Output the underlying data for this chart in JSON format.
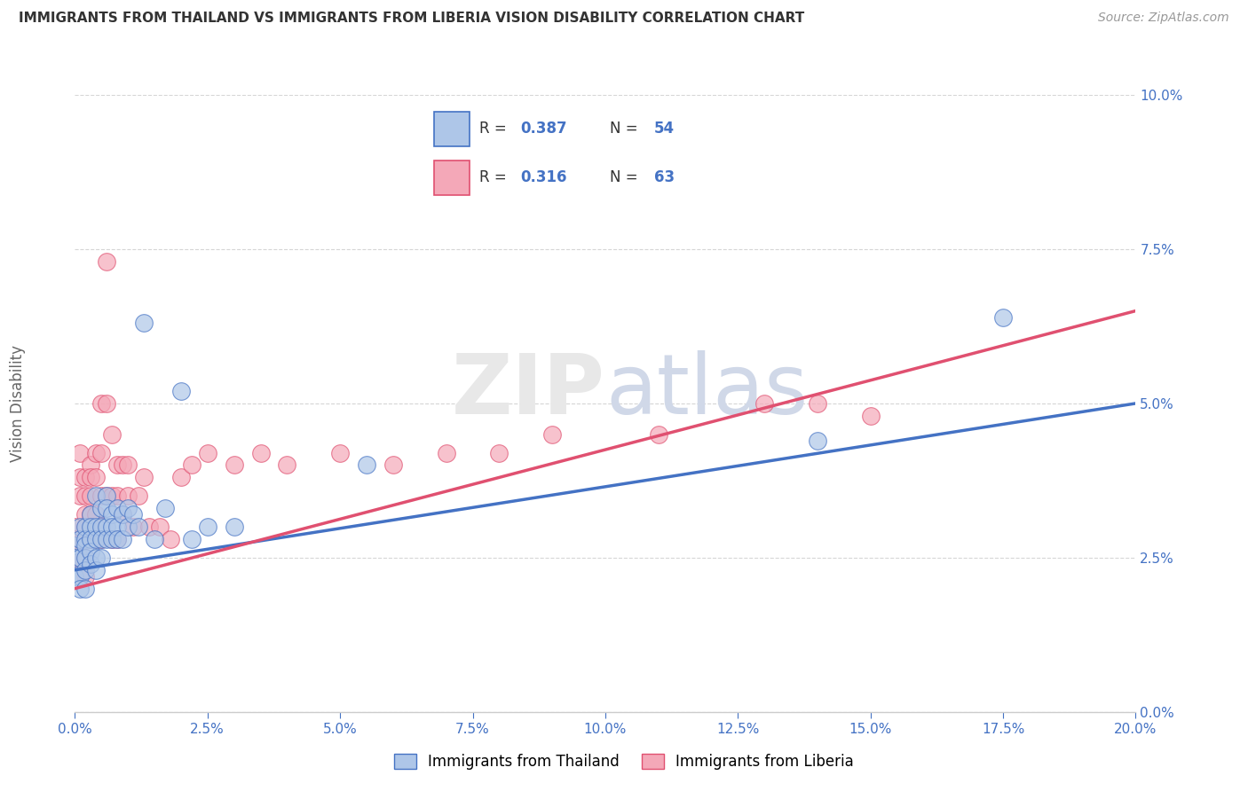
{
  "title": "IMMIGRANTS FROM THAILAND VS IMMIGRANTS FROM LIBERIA VISION DISABILITY CORRELATION CHART",
  "source": "Source: ZipAtlas.com",
  "ylabel": "Vision Disability",
  "legend_label1": "Immigrants from Thailand",
  "legend_label2": "Immigrants from Liberia",
  "legend_R1": "0.387",
  "legend_N1": "54",
  "legend_R2": "0.316",
  "legend_N2": "63",
  "color_thailand": "#AEC6E8",
  "color_liberia": "#F4A8B8",
  "trend_color_thailand": "#4472C4",
  "trend_color_liberia": "#E05070",
  "background_color": "#FFFFFF",
  "watermark": "ZIPatlas",
  "xlim": [
    0.0,
    0.2
  ],
  "ylim": [
    0.0,
    0.1
  ],
  "yticks": [
    0.0,
    0.025,
    0.05,
    0.075,
    0.1
  ],
  "xticks": [
    0.0,
    0.025,
    0.05,
    0.075,
    0.1,
    0.125,
    0.15,
    0.175,
    0.2
  ],
  "thailand_x": [
    0.0,
    0.0,
    0.0,
    0.001,
    0.001,
    0.001,
    0.001,
    0.001,
    0.002,
    0.002,
    0.002,
    0.002,
    0.002,
    0.002,
    0.003,
    0.003,
    0.003,
    0.003,
    0.003,
    0.004,
    0.004,
    0.004,
    0.004,
    0.004,
    0.005,
    0.005,
    0.005,
    0.005,
    0.006,
    0.006,
    0.006,
    0.006,
    0.007,
    0.007,
    0.007,
    0.008,
    0.008,
    0.008,
    0.009,
    0.009,
    0.01,
    0.01,
    0.011,
    0.012,
    0.013,
    0.015,
    0.017,
    0.02,
    0.022,
    0.025,
    0.03,
    0.055,
    0.14,
    0.175
  ],
  "thailand_y": [
    0.027,
    0.025,
    0.022,
    0.03,
    0.028,
    0.025,
    0.022,
    0.02,
    0.03,
    0.028,
    0.027,
    0.025,
    0.023,
    0.02,
    0.032,
    0.03,
    0.028,
    0.026,
    0.024,
    0.035,
    0.03,
    0.028,
    0.025,
    0.023,
    0.033,
    0.03,
    0.028,
    0.025,
    0.035,
    0.033,
    0.03,
    0.028,
    0.032,
    0.03,
    0.028,
    0.033,
    0.03,
    0.028,
    0.032,
    0.028,
    0.033,
    0.03,
    0.032,
    0.03,
    0.063,
    0.028,
    0.033,
    0.052,
    0.028,
    0.03,
    0.03,
    0.04,
    0.044,
    0.064
  ],
  "liberia_x": [
    0.0,
    0.0,
    0.0,
    0.001,
    0.001,
    0.001,
    0.001,
    0.001,
    0.002,
    0.002,
    0.002,
    0.002,
    0.002,
    0.002,
    0.002,
    0.003,
    0.003,
    0.003,
    0.003,
    0.003,
    0.003,
    0.004,
    0.004,
    0.004,
    0.004,
    0.005,
    0.005,
    0.005,
    0.005,
    0.006,
    0.006,
    0.006,
    0.007,
    0.007,
    0.007,
    0.008,
    0.008,
    0.008,
    0.009,
    0.009,
    0.01,
    0.01,
    0.011,
    0.012,
    0.013,
    0.014,
    0.016,
    0.018,
    0.02,
    0.022,
    0.025,
    0.03,
    0.035,
    0.04,
    0.05,
    0.06,
    0.07,
    0.08,
    0.09,
    0.11,
    0.13,
    0.14,
    0.15
  ],
  "liberia_y": [
    0.03,
    0.028,
    0.025,
    0.042,
    0.038,
    0.035,
    0.028,
    0.025,
    0.038,
    0.035,
    0.032,
    0.03,
    0.028,
    0.025,
    0.022,
    0.04,
    0.038,
    0.035,
    0.032,
    0.03,
    0.028,
    0.042,
    0.038,
    0.032,
    0.028,
    0.05,
    0.042,
    0.035,
    0.028,
    0.073,
    0.05,
    0.035,
    0.045,
    0.035,
    0.028,
    0.04,
    0.035,
    0.028,
    0.04,
    0.032,
    0.04,
    0.035,
    0.03,
    0.035,
    0.038,
    0.03,
    0.03,
    0.028,
    0.038,
    0.04,
    0.042,
    0.04,
    0.042,
    0.04,
    0.042,
    0.04,
    0.042,
    0.042,
    0.045,
    0.045,
    0.05,
    0.05,
    0.048
  ],
  "trend_th_x0": 0.0,
  "trend_th_y0": 0.023,
  "trend_th_x1": 0.2,
  "trend_th_y1": 0.05,
  "trend_lib_x0": 0.0,
  "trend_lib_y0": 0.02,
  "trend_lib_x1": 0.2,
  "trend_lib_y1": 0.065
}
